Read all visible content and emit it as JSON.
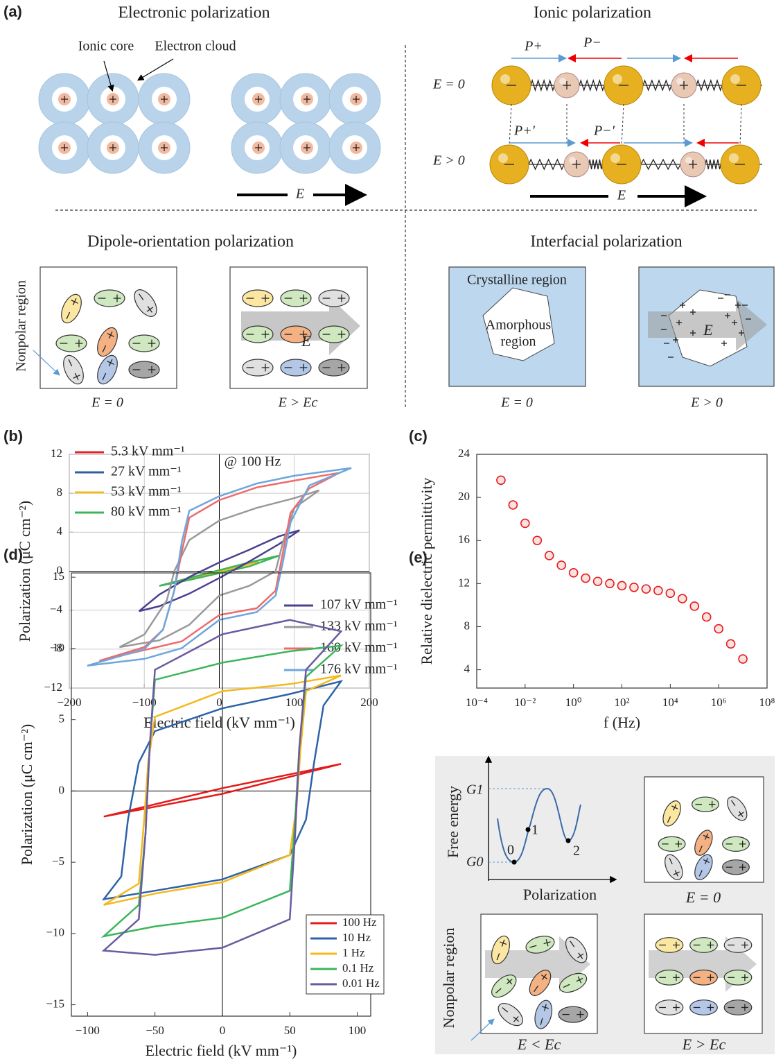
{
  "panel_a": {
    "label": "(a)",
    "electronic": {
      "title": "Electronic polarization",
      "ionic_core": "Ionic core",
      "electron_cloud": "Electron cloud",
      "field": "E"
    },
    "ionic": {
      "title": "Ionic polarization",
      "p_plus": "P+",
      "p_minus": "P−",
      "state_zero": "E = 0",
      "p_plus_prime": "P+′",
      "p_minus_prime": "P−′",
      "state_field": "E > 0",
      "field": "E"
    },
    "dipole": {
      "title": "Dipole-orientation polarization",
      "nonpolar": "Nonpolar region",
      "state_zero": "E = 0",
      "state_field": "E > Ec",
      "field": "E"
    },
    "interfacial": {
      "title": "Interfacial polarization",
      "crystalline": "Crystalline region",
      "amorphous": [
        "Amorphous",
        "region"
      ],
      "field": "E",
      "state_zero": "E = 0",
      "state_field": "E > 0"
    }
  },
  "chart_data": [
    {
      "type": "line",
      "panel_label": "(b)",
      "annotation": "@ 100 Hz",
      "x_label": "Electric field (kV mm⁻¹)",
      "y_label": "Polarization (μC cm⁻²)",
      "xlim": [
        -200,
        200
      ],
      "ylim": [
        -12,
        12
      ],
      "xticks": [
        {
          "value": -200,
          "label": "−200"
        },
        {
          "value": -100,
          "label": "−100"
        },
        0,
        100,
        200
      ],
      "yticks": [
        {
          "value": -12,
          "label": "−12"
        },
        {
          "value": -8,
          "label": "−8"
        },
        {
          "value": -4,
          "label": "−4"
        },
        0,
        4,
        8,
        12
      ],
      "grid": true,
      "zero_axes": true,
      "series": [
        {
          "name": "5.3 kV mm⁻¹",
          "color": "#e8202a",
          "x": [
            5.3,
            0,
            -5.3,
            0
          ],
          "values": [
            0.1,
            0.02,
            -0.1,
            -0.02
          ]
        },
        {
          "name": "27 kV mm⁻¹",
          "color": "#2e5f9e",
          "x": [
            27,
            0,
            -27,
            0
          ],
          "values": [
            0.5,
            0.1,
            -0.5,
            -0.1
          ]
        },
        {
          "name": "53 kV mm⁻¹",
          "color": "#f2b922",
          "x": [
            53,
            0,
            -53,
            0
          ],
          "values": [
            1.0,
            0.1,
            -1.0,
            -0.1
          ]
        },
        {
          "name": "80 kV mm⁻¹",
          "color": "#3cb55a",
          "x": [
            80,
            40,
            0,
            -40,
            -80,
            -40,
            0,
            40
          ],
          "values": [
            1.6,
            0.9,
            0.1,
            -0.7,
            -1.5,
            -0.9,
            -0.2,
            0.5
          ]
        },
        {
          "name": "107 kV mm⁻¹",
          "color": "#4a4090",
          "x": [
            107,
            80,
            40,
            0,
            -40,
            -80,
            -107,
            -80,
            -40,
            0,
            40,
            80
          ],
          "values": [
            4.2,
            3.6,
            2.2,
            0.9,
            -0.6,
            -2.4,
            -4.1,
            -3.6,
            -2.3,
            -0.7,
            1.0,
            2.8
          ]
        },
        {
          "name": "133 kV mm⁻¹",
          "color": "#999999",
          "x": [
            133,
            100,
            50,
            0,
            -40,
            -60,
            -70,
            -100,
            -133,
            -80,
            -40,
            0,
            40,
            75,
            85,
            100
          ],
          "values": [
            8.3,
            7.5,
            6.5,
            5.2,
            3.2,
            0,
            -3,
            -6.5,
            -7.8,
            -7.1,
            -5.5,
            -2.5,
            -1.5,
            0,
            3,
            6.5
          ]
        },
        {
          "name": "160 kV mm⁻¹",
          "color": "#f06a6a",
          "x": [
            160,
            100,
            50,
            0,
            -40,
            -50,
            -60,
            -75,
            -100,
            -160,
            -100,
            -50,
            0,
            50,
            75,
            85,
            95,
            120
          ],
          "values": [
            10.1,
            9.3,
            8.6,
            7.3,
            5.5,
            2,
            -2,
            -6,
            -7.8,
            -9.2,
            -8.1,
            -7.2,
            -4.5,
            -3.8,
            -2,
            2,
            6,
            8.5
          ]
        },
        {
          "name": "176 kV mm⁻¹",
          "color": "#6ea6dc",
          "x": [
            176,
            100,
            50,
            0,
            -40,
            -50,
            -60,
            -75,
            -100,
            -176,
            -100,
            -50,
            0,
            50,
            75,
            85,
            95,
            120
          ],
          "values": [
            10.6,
            9.8,
            9.0,
            7.7,
            6.2,
            3,
            -2,
            -6,
            -8,
            -9.7,
            -9.0,
            -7.9,
            -5.0,
            -4.2,
            -2.5,
            1,
            5,
            8.8
          ]
        }
      ]
    },
    {
      "type": "scatter",
      "panel_label": "(c)",
      "x_label": "f (Hz)",
      "y_label": "Relative dielectric permittivity",
      "color": "#e41b1b",
      "xlog": true,
      "xlim": [
        0.0001,
        100000000
      ],
      "ylim": [
        2.3,
        24
      ],
      "xticks": [
        {
          "value": 0.0001,
          "label": "10⁻⁴"
        },
        {
          "value": 0.01,
          "label": "10⁻²"
        },
        {
          "value": 1,
          "label": "10⁰"
        },
        {
          "value": 100,
          "label": "10²"
        },
        {
          "value": 10000,
          "label": "10⁴"
        },
        {
          "value": 1000000,
          "label": "10⁶"
        },
        {
          "value": 100000000,
          "label": "10⁸"
        }
      ],
      "yticks": [
        4,
        8,
        12,
        16,
        20,
        24
      ],
      "x": [
        0.001,
        0.00316,
        0.01,
        0.0316,
        0.1,
        0.316,
        1,
        3.16,
        10,
        31.6,
        100,
        316,
        1000,
        3160,
        10000,
        31600,
        100000,
        316000,
        1000000,
        3160000,
        10000000
      ],
      "values": [
        21.6,
        19.3,
        17.6,
        16.0,
        14.6,
        13.7,
        13.0,
        12.5,
        12.2,
        12.0,
        11.8,
        11.65,
        11.5,
        11.35,
        11.1,
        10.6,
        9.9,
        8.9,
        7.8,
        6.4,
        5.0
      ]
    },
    {
      "type": "line",
      "panel_label": "(d)",
      "x_label": "Electric field (kV mm⁻¹)",
      "y_label": "Polarization (μC cm⁻²)",
      "xlim": [
        -112,
        110
      ],
      "ylim": [
        -15.8,
        15.3
      ],
      "xticks": [
        {
          "value": -100,
          "label": "−100"
        },
        {
          "value": -50,
          "label": "−50"
        },
        0,
        50,
        100
      ],
      "yticks": [
        {
          "value": -15,
          "label": "−15"
        },
        {
          "value": -10,
          "label": "−10"
        },
        {
          "value": -5,
          "label": "−5"
        },
        0,
        5,
        10,
        15
      ],
      "grid": false,
      "zero_axes": true,
      "series": [
        {
          "name": "100 Hz",
          "color": "#e41b1b",
          "x": [
            88,
            0,
            -88,
            0
          ],
          "values": [
            1.9,
            0.2,
            -1.8,
            -0.2
          ]
        },
        {
          "name": "10 Hz",
          "color": "#2e62a8",
          "x": [
            88,
            50,
            0,
            -50,
            -62,
            -70,
            -75,
            -88,
            -50,
            0,
            50,
            62,
            68,
            75
          ],
          "values": [
            7.7,
            6.8,
            5.8,
            4.2,
            2,
            -2,
            -6,
            -7.6,
            -7,
            -6.2,
            -4.5,
            -2,
            2,
            6
          ]
        },
        {
          "name": "1 Hz",
          "color": "#f5b81c",
          "x": [
            88,
            50,
            0,
            -50,
            -55,
            -58,
            -62,
            -88,
            -50,
            0,
            50,
            55,
            58,
            62
          ],
          "values": [
            8.1,
            7.5,
            7,
            5.2,
            2,
            -2,
            -6.5,
            -8,
            -7.2,
            -6.4,
            -4.5,
            -1,
            3,
            7
          ]
        },
        {
          "name": "0.1 Hz",
          "color": "#3cb55a",
          "x": [
            88,
            50,
            0,
            -50,
            -54,
            -57,
            -62,
            -88,
            -50,
            0,
            50,
            54,
            57,
            62
          ],
          "values": [
            10.2,
            9.8,
            9,
            7.8,
            3,
            -3,
            -8,
            -10.2,
            -9.5,
            -8.9,
            -7,
            -2,
            3,
            8
          ]
        },
        {
          "name": "0.01 Hz",
          "color": "#6a5aa0",
          "x": [
            88,
            50,
            0,
            -50,
            -54,
            -57,
            -62,
            -88,
            -50,
            0,
            50,
            54,
            57,
            62
          ],
          "values": [
            11.2,
            12,
            11,
            8.5,
            3,
            -3,
            -9,
            -11.2,
            -11.5,
            -11,
            -9,
            -3,
            3,
            8.5
          ]
        }
      ]
    }
  ],
  "panel_e": {
    "label": "(e)",
    "free_energy": "Free energy",
    "polarization": "Polarization",
    "g1": "G1",
    "g0": "G0",
    "state0": "0",
    "state1": "1",
    "state2": "2",
    "state_zero": "E = 0",
    "nonpolar": "Nonpolar region",
    "state_low": "E < Ec",
    "state_high": "E > Ec"
  }
}
